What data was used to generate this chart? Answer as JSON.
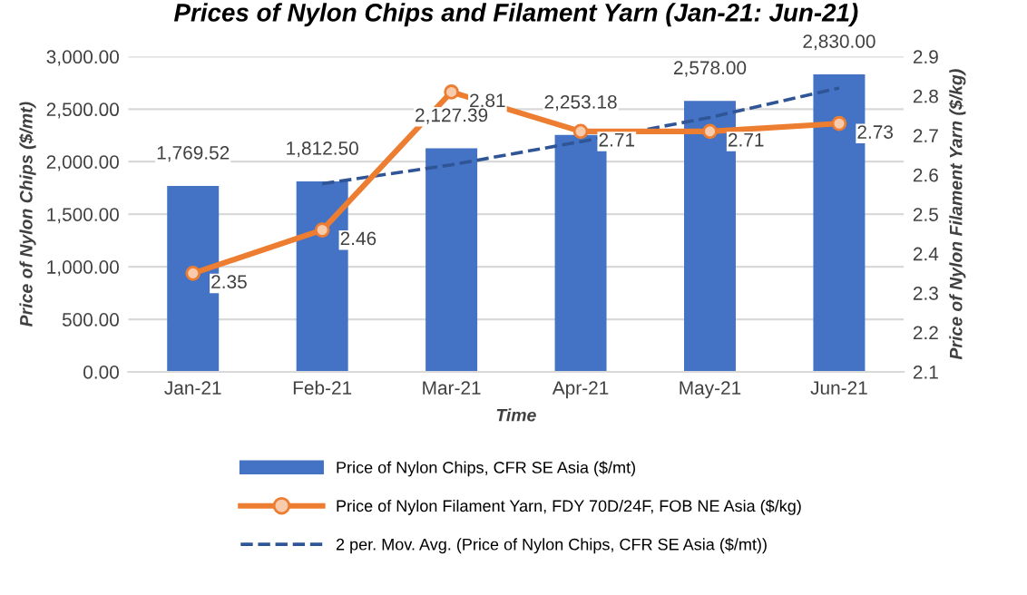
{
  "chart_data": {
    "type": "bar",
    "title": "Prices of Nylon Chips and Filament Yarn (Jan-21: Jun-21)",
    "xlabel": "Time",
    "ylabel": "Price of Nylon Chips ($/mt)",
    "y2label": "Price of Nylon Filament Yarn ($/kg)",
    "categories": [
      "Jan-21",
      "Feb-21",
      "Mar-21",
      "Apr-21",
      "May-21",
      "Jun-21"
    ],
    "series": [
      {
        "name": "Price of Nylon Chips, CFR SE Asia ($/mt)",
        "color": "#4472c4",
        "values": [
          1769.52,
          1812.5,
          2127.39,
          2253.18,
          2578.0,
          2830.0
        ],
        "value_labels": [
          "1,769.52",
          "1,812.50",
          "2,127.39",
          "2,253.18",
          "2,578.00",
          "2,830.00"
        ]
      },
      {
        "name": "Price of Nylon Filament Yarn, FDY 70D/24F, FOB NE Asia ($/kg)",
        "type": "line",
        "axis": "y2",
        "color": "#ed7d31",
        "marker": "circle",
        "line_style": "solid",
        "values": [
          2.35,
          2.46,
          2.81,
          2.71,
          2.71,
          2.73
        ],
        "value_labels": [
          "2.35",
          "2.46",
          "2.81",
          "2.71",
          "2.71",
          "2.73"
        ]
      },
      {
        "name": "2 per. Mov. Avg. (Price of Nylon Chips, CFR SE Asia ($/mt))",
        "type": "line",
        "color": "#2f5597",
        "marker": "none",
        "line_style": "dashed",
        "values": [
          null,
          1790,
          1970,
          2190,
          2420,
          2700
        ]
      }
    ],
    "ylim": [
      0,
      3000
    ],
    "yticks": [
      {
        "value": 0,
        "label": "0.00"
      },
      {
        "value": 500,
        "label": "500.00"
      },
      {
        "value": 1000,
        "label": "1,000.00"
      },
      {
        "value": 1500,
        "label": "1,500.00"
      },
      {
        "value": 2000,
        "label": "2,000.00"
      },
      {
        "value": 2500,
        "label": "2,500.00"
      },
      {
        "value": 3000,
        "label": "3,000.00"
      }
    ],
    "y2lim": [
      2.1,
      2.9
    ],
    "y2ticks": [
      2.1,
      2.2,
      2.3,
      2.4,
      2.5,
      2.6,
      2.7,
      2.8,
      2.9
    ],
    "grid": "y",
    "legend": "bottom"
  }
}
